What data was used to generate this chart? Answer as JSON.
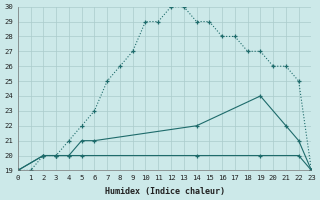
{
  "xlabel": "Humidex (Indice chaleur)",
  "background_color": "#cce9e9",
  "grid_color": "#aacccc",
  "line_color": "#1e6b6b",
  "xlim": [
    0,
    23
  ],
  "ylim": [
    19,
    30
  ],
  "xticks": [
    0,
    1,
    2,
    3,
    4,
    5,
    6,
    7,
    8,
    9,
    10,
    11,
    12,
    13,
    14,
    15,
    16,
    17,
    18,
    19,
    20,
    21,
    22,
    23
  ],
  "yticks": [
    19,
    20,
    21,
    22,
    23,
    24,
    25,
    26,
    27,
    28,
    29,
    30
  ],
  "curve_top_x": [
    0,
    1,
    2,
    3,
    4,
    5,
    6,
    7,
    8,
    9,
    10,
    11,
    12,
    13,
    14,
    15,
    16,
    17,
    18,
    19,
    20,
    21,
    22,
    23
  ],
  "curve_top_y": [
    19,
    19,
    20,
    20,
    21,
    22,
    23,
    25,
    26,
    27,
    29,
    29,
    30,
    30,
    29,
    29,
    28,
    28,
    27,
    27,
    26,
    26,
    25,
    19
  ],
  "curve_mid_x": [
    0,
    2,
    3,
    4,
    5,
    6,
    14,
    19,
    21,
    22,
    23
  ],
  "curve_mid_y": [
    19,
    20,
    20,
    20,
    21,
    21,
    22,
    24,
    22,
    21,
    19
  ],
  "curve_bot_x": [
    0,
    2,
    3,
    4,
    5,
    14,
    19,
    22,
    23
  ],
  "curve_bot_y": [
    19,
    20,
    20,
    20,
    20,
    20,
    20,
    20,
    19
  ]
}
